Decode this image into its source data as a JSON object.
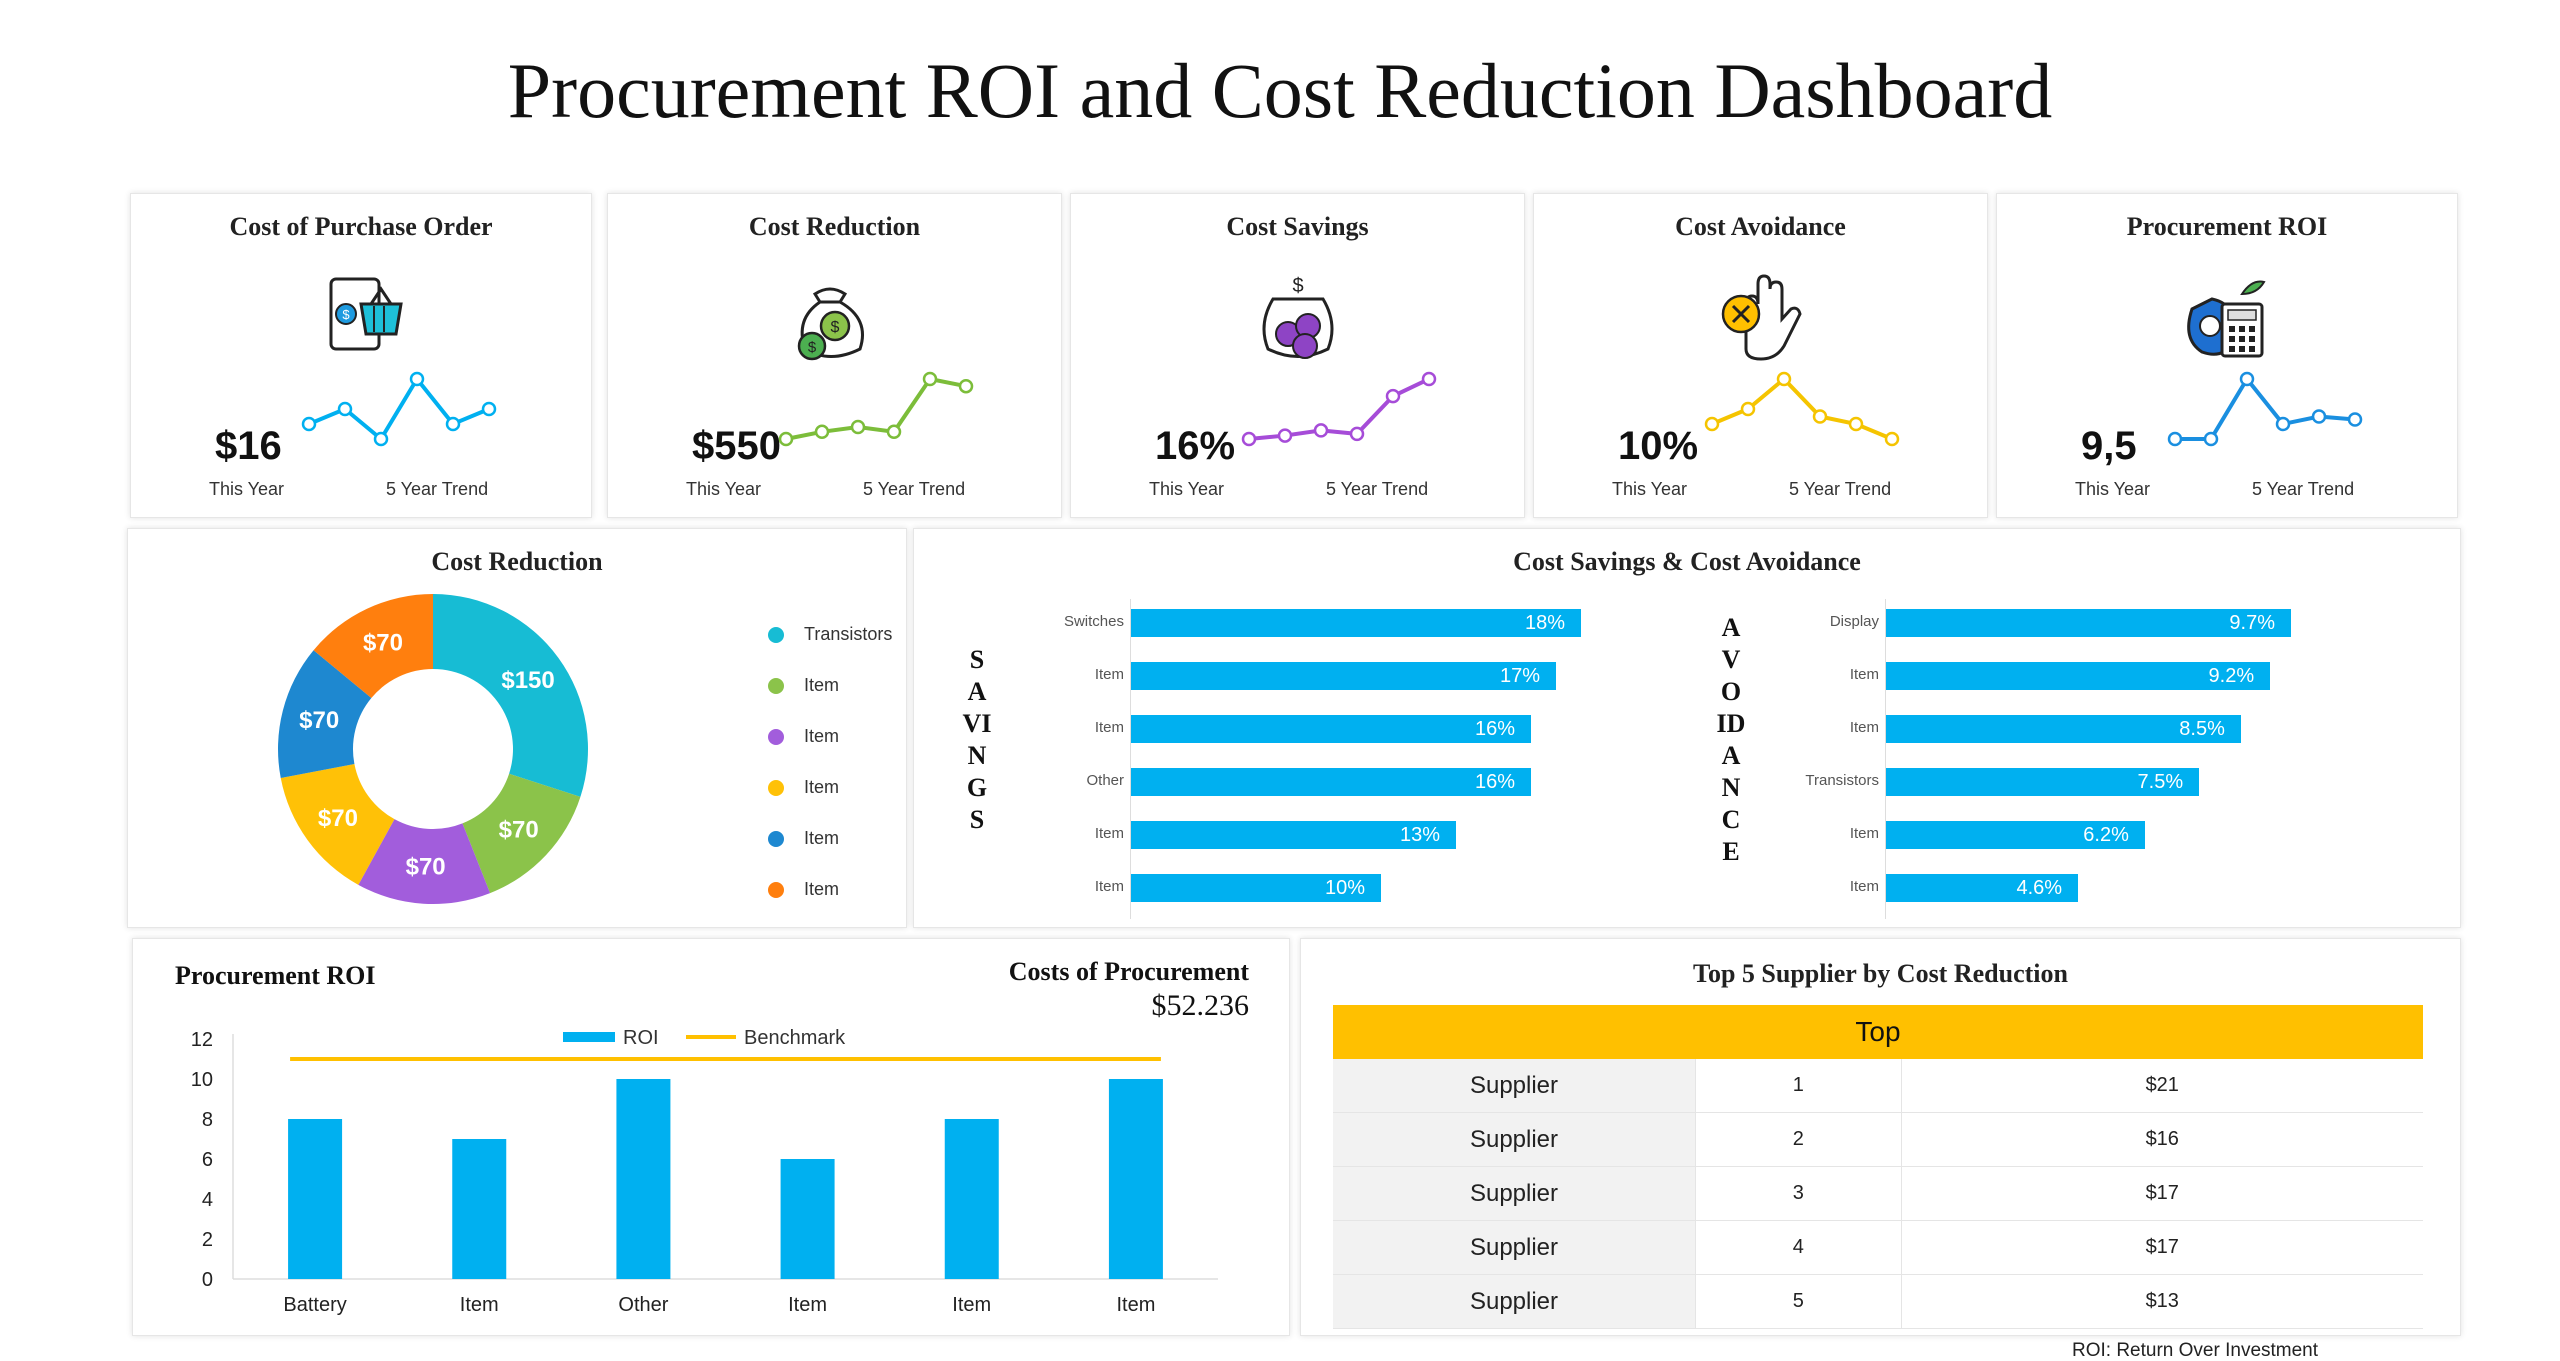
{
  "title": "Procurement ROI and Cost Reduction Dashboard",
  "kpis": [
    {
      "title": "Cost of Purchase Order",
      "value": "$16",
      "this_year": "This Year",
      "trend_label": "5 Year Trend",
      "trend": [
        3,
        4,
        2,
        6,
        3,
        4
      ],
      "color": "#00b0f0",
      "icon": "tablet-basket-icon"
    },
    {
      "title": "Cost Reduction",
      "value": "$550",
      "this_year": "This Year",
      "trend_label": "5 Year Trend",
      "trend": [
        2,
        2.3,
        2.5,
        2.3,
        4.5,
        4.2
      ],
      "color": "#7cbd3a",
      "icon": "money-bag-icon"
    },
    {
      "title": "Cost Savings",
      "value": "16%",
      "this_year": "This Year",
      "trend_label": "5 Year Trend",
      "trend": [
        2,
        2.2,
        2.5,
        2.3,
        4.5,
        5.5
      ],
      "color": "#a64cd8",
      "icon": "coin-jar-icon"
    },
    {
      "title": "Cost Avoidance",
      "value": "10%",
      "this_year": "This Year",
      "trend_label": "5 Year Trend",
      "trend": [
        3,
        4,
        6,
        3.5,
        3,
        2
      ],
      "color": "#f5c400",
      "icon": "hand-stop-icon"
    },
    {
      "title": "Procurement ROI",
      "value": "9,5",
      "this_year": "This Year",
      "trend_label": "5 Year Trend",
      "trend": [
        2,
        2,
        6,
        3,
        3.5,
        3.3
      ],
      "color": "#1a8fe0",
      "icon": "calculator-bag-icon"
    }
  ],
  "cost_reduction": {
    "title": "Cost Reduction",
    "legend": [
      {
        "label": "Transistors",
        "color": "#17bcd4"
      },
      {
        "label": "Item",
        "color": "#8bc34a"
      },
      {
        "label": "Item",
        "color": "#a25ddc"
      },
      {
        "label": "Item",
        "color": "#ffc107"
      },
      {
        "label": "Item",
        "color": "#1e88d0"
      },
      {
        "label": "Item",
        "color": "#ff7f0e"
      }
    ]
  },
  "savings_avoidance": {
    "title": "Cost Savings & Cost Avoidance",
    "savings_word": "SAVINGS",
    "avoidance_word": "AVOIDANCE"
  },
  "roi_chart": {
    "title": "Procurement ROI",
    "costs_title": "Costs of Procurement",
    "costs_value": "$52.236",
    "legend_roi": "ROI",
    "legend_benchmark": "Benchmark"
  },
  "suppliers": {
    "title": "Top 5 Supplier by Cost Reduction",
    "header": "Top",
    "rows": [
      {
        "name": "Supplier",
        "rank": "1",
        "amount": "$21"
      },
      {
        "name": "Supplier",
        "rank": "2",
        "amount": "$16"
      },
      {
        "name": "Supplier",
        "rank": "3",
        "amount": "$17"
      },
      {
        "name": "Supplier",
        "rank": "4",
        "amount": "$17"
      },
      {
        "name": "Supplier",
        "rank": "5",
        "amount": "$13"
      }
    ]
  },
  "footnote": "ROI: Return Over Investment",
  "chart_data": [
    {
      "type": "pie",
      "title": "Cost Reduction",
      "categories": [
        "Transistors",
        "Item",
        "Item",
        "Item",
        "Item",
        "Item"
      ],
      "values": [
        150,
        70,
        70,
        70,
        70,
        70
      ],
      "labels": [
        "$150",
        "$70",
        "$70",
        "$70",
        "$70",
        "$70"
      ]
    },
    {
      "type": "bar",
      "title": "Savings",
      "categories": [
        "Switches",
        "Item",
        "Item",
        "Other",
        "Item",
        "Item"
      ],
      "values": [
        18,
        17,
        16,
        16,
        13,
        10
      ],
      "labels": [
        "18%",
        "17%",
        "16%",
        "16%",
        "13%",
        "10%"
      ]
    },
    {
      "type": "bar",
      "title": "Avoidance",
      "categories": [
        "Display",
        "Item",
        "Item",
        "Transistors",
        "Item",
        "Item"
      ],
      "values": [
        9.7,
        9.2,
        8.5,
        7.5,
        6.2,
        4.6
      ],
      "labels": [
        "9.7%",
        "9.2%",
        "8.5%",
        "7.5%",
        "6.2%",
        "4.6%"
      ]
    },
    {
      "type": "bar",
      "title": "Procurement ROI",
      "categories": [
        "Battery",
        "Item",
        "Other",
        "Item",
        "Item",
        "Item"
      ],
      "series": [
        {
          "name": "ROI",
          "values": [
            8,
            7,
            10,
            6,
            8,
            10
          ]
        },
        {
          "name": "Benchmark",
          "values": [
            11,
            11,
            11,
            11,
            11,
            11
          ]
        }
      ],
      "yticks": [
        "0",
        "2",
        "4",
        "6",
        "8",
        "10",
        "12"
      ],
      "ylim": [
        0,
        12
      ]
    }
  ]
}
